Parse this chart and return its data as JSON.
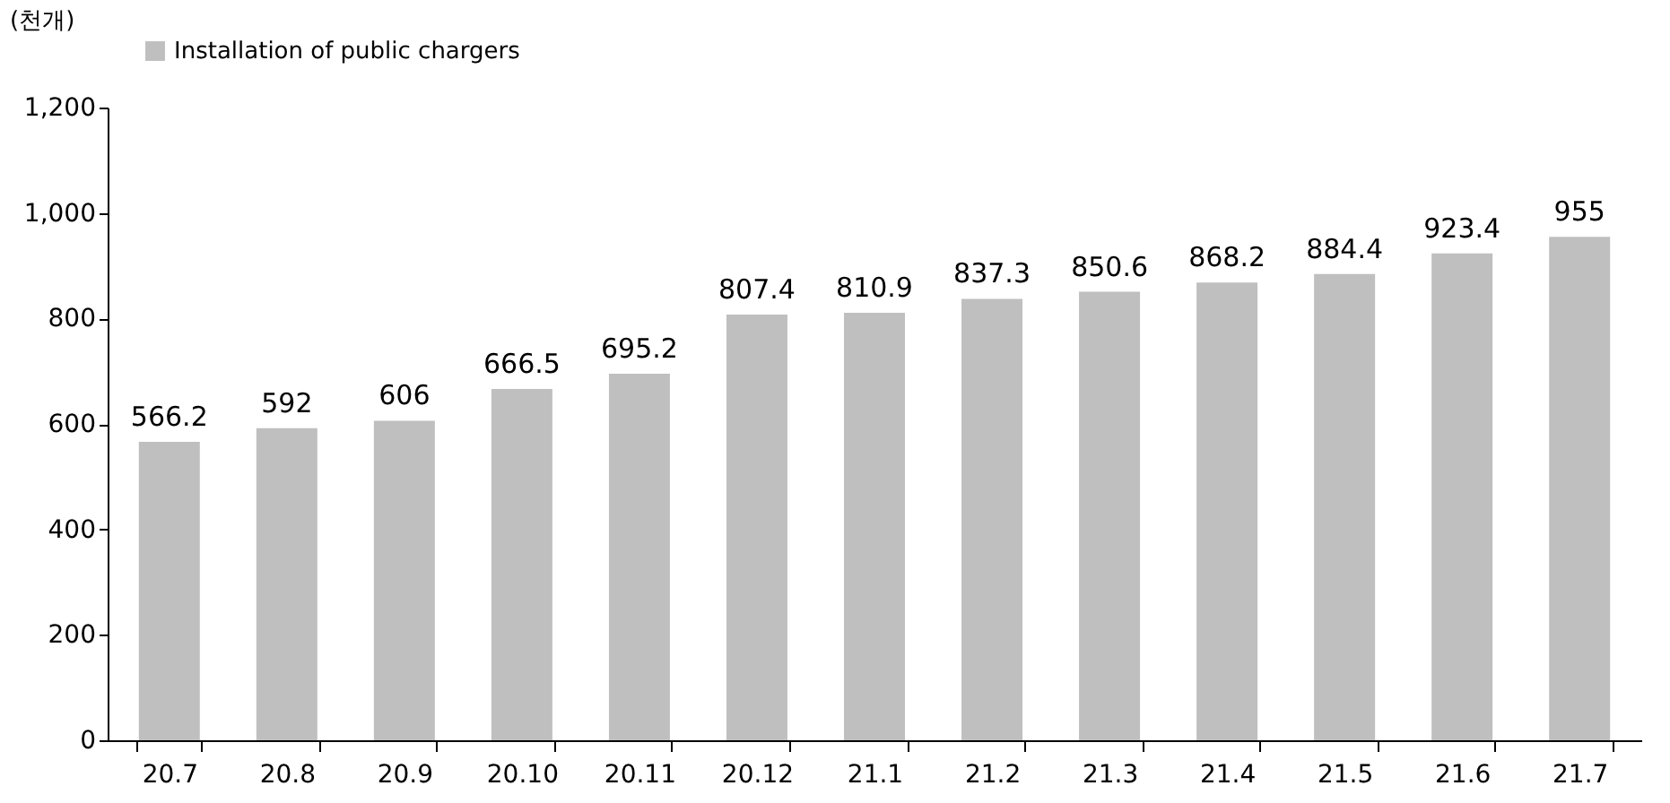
{
  "chart_data": {
    "type": "bar",
    "ylabel": "(천개)",
    "categories": [
      "20.7",
      "20.8",
      "20.9",
      "20.10",
      "20.11",
      "20.12",
      "21.1",
      "21.2",
      "21.3",
      "21.4",
      "21.5",
      "21.6",
      "21.7"
    ],
    "series": [
      {
        "name": "Installation of public chargers",
        "color": "#bfbfbf",
        "values": [
          566.2,
          592,
          606,
          666.5,
          695.2,
          807.4,
          810.9,
          837.3,
          850.6,
          868.2,
          884.4,
          923.4,
          955
        ]
      }
    ],
    "ylim": [
      0,
      1200
    ],
    "yticks": [
      0,
      200,
      400,
      600,
      800,
      {
        "value": 1000,
        "label": "1,000"
      },
      {
        "value": 1200,
        "label": "1,200"
      }
    ],
    "data_labels": true,
    "grid": false,
    "legend": "top left"
  }
}
